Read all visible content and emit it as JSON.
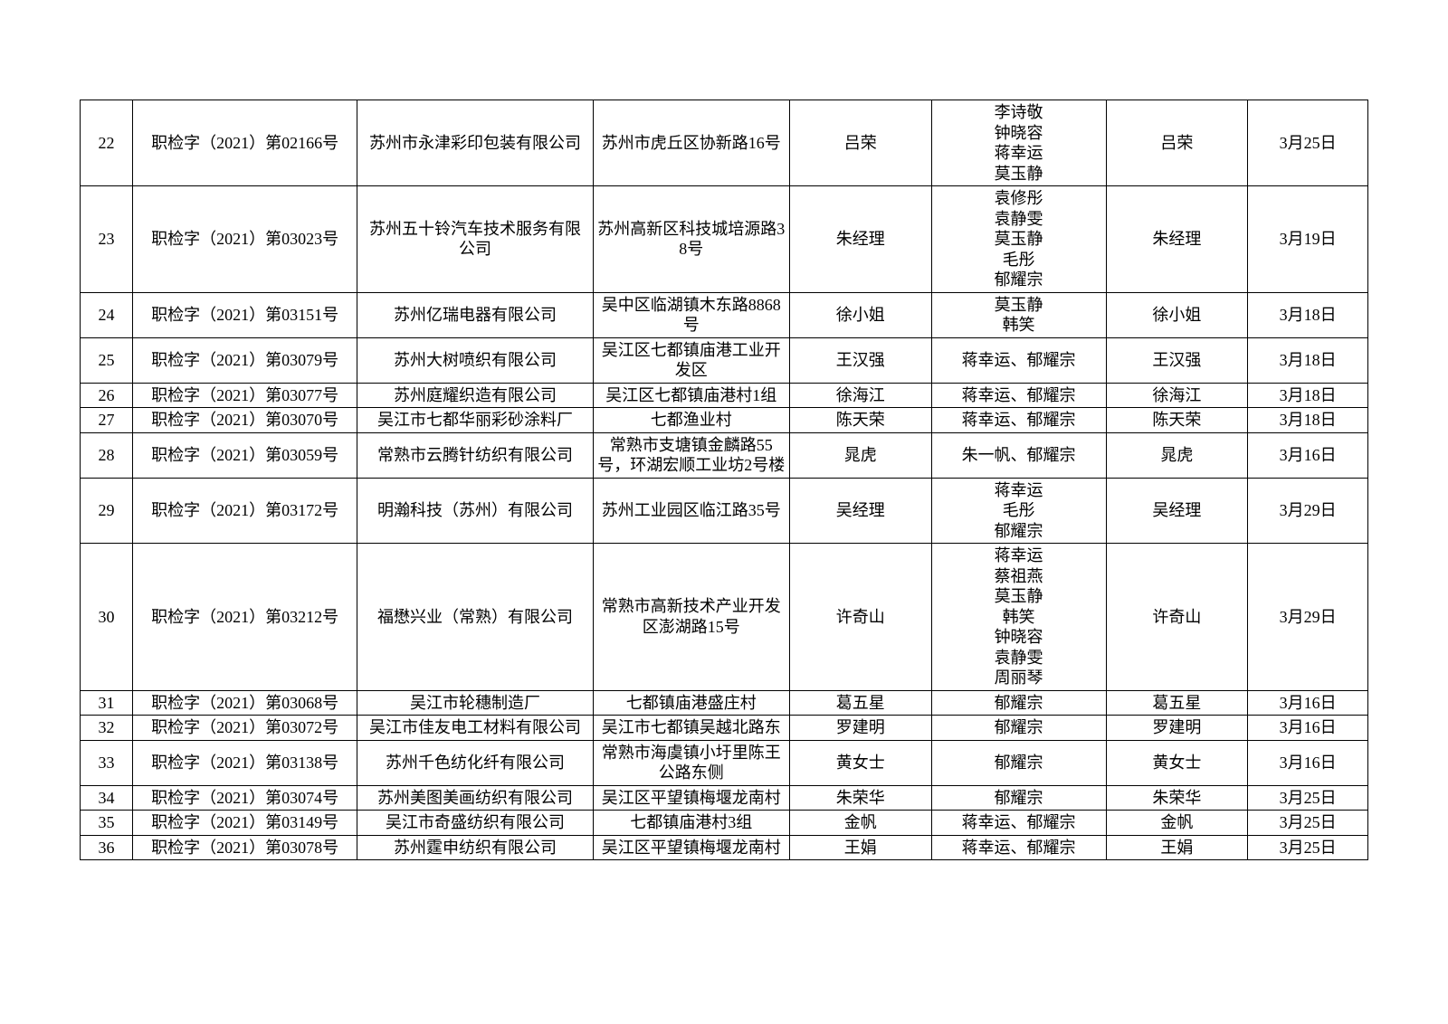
{
  "table": {
    "border_color": "#000000",
    "font_size": 18,
    "background": "#ffffff",
    "rows": [
      {
        "idx": "22",
        "code": "职检字（2021）第02166号",
        "company": "苏州市永津彩印包装有限公司",
        "address": "苏州市虎丘区协新路16号",
        "p1": "吕荣",
        "p2": "李诗敬\n钟晓容\n蒋幸运\n莫玉静",
        "p3": "吕荣",
        "date": "3月25日"
      },
      {
        "idx": "23",
        "code": "职检字（2021）第03023号",
        "company": "苏州五十铃汽车技术服务有限公司",
        "address": "苏州高新区科技城培源路38号",
        "p1": "朱经理",
        "p2": "袁修彤\n袁静雯\n莫玉静\n毛彤\n郁耀宗",
        "p3": "朱经理",
        "date": "3月19日"
      },
      {
        "idx": "24",
        "code": "职检字（2021）第03151号",
        "company": "苏州亿瑞电器有限公司",
        "address": "吴中区临湖镇木东路8868号",
        "p1": "徐小姐",
        "p2": "莫玉静\n韩笑",
        "p3": "徐小姐",
        "date": "3月18日"
      },
      {
        "idx": "25",
        "code": "职检字（2021）第03079号",
        "company": "苏州大树喷织有限公司",
        "address": "吴江区七都镇庙港工业开发区",
        "p1": "王汉强",
        "p2": "蒋幸运、郁耀宗",
        "p3": "王汉强",
        "date": "3月18日"
      },
      {
        "idx": "26",
        "code": "职检字（2021）第03077号",
        "company": "苏州庭耀织造有限公司",
        "address": "吴江区七都镇庙港村1组",
        "p1": "徐海江",
        "p2": "蒋幸运、郁耀宗",
        "p3": "徐海江",
        "date": "3月18日"
      },
      {
        "idx": "27",
        "code": "职检字（2021）第03070号",
        "company": "吴江市七都华丽彩砂涂料厂",
        "address": "七都渔业村",
        "p1": "陈天荣",
        "p2": "蒋幸运、郁耀宗",
        "p3": "陈天荣",
        "date": "3月18日"
      },
      {
        "idx": "28",
        "code": "职检字（2021）第03059号",
        "company": "常熟市云腾针纺织有限公司",
        "address": "常熟市支塘镇金麟路55号，环湖宏顺工业坊2号楼",
        "p1": "晁虎",
        "p2": "朱一帆、郁耀宗",
        "p3": "晁虎",
        "date": "3月16日"
      },
      {
        "idx": "29",
        "code": "职检字（2021）第03172号",
        "company": "明瀚科技（苏州）有限公司",
        "address": "苏州工业园区临江路35号",
        "p1": "吴经理",
        "p2": "蒋幸运\n毛彤\n郁耀宗",
        "p3": "吴经理",
        "date": "3月29日"
      },
      {
        "idx": "30",
        "code": "职检字（2021）第03212号",
        "company": "福懋兴业（常熟）有限公司",
        "address": "常熟市高新技术产业开发区澎湖路15号",
        "p1": "许奇山",
        "p2": "蒋幸运\n蔡祖燕\n莫玉静\n韩笑\n钟晓容\n袁静雯\n周丽琴",
        "p3": "许奇山",
        "date": "3月29日"
      },
      {
        "idx": "31",
        "code": "职检字（2021）第03068号",
        "company": "吴江市轮穗制造厂",
        "address": "七都镇庙港盛庄村",
        "p1": "葛五星",
        "p2": "郁耀宗",
        "p3": "葛五星",
        "date": "3月16日"
      },
      {
        "idx": "32",
        "code": "职检字（2021）第03072号",
        "company": "吴江市佳友电工材料有限公司",
        "address": "吴江市七都镇吴越北路东",
        "p1": "罗建明",
        "p2": "郁耀宗",
        "p3": "罗建明",
        "date": "3月16日"
      },
      {
        "idx": "33",
        "code": "职检字（2021）第03138号",
        "company": "苏州千色纺化纤有限公司",
        "address": "常熟市海虞镇小圩里陈王公路东侧",
        "p1": "黄女士",
        "p2": "郁耀宗",
        "p3": "黄女士",
        "date": "3月16日"
      },
      {
        "idx": "34",
        "code": "职检字（2021）第03074号",
        "company": "苏州美图美画纺织有限公司",
        "address": "吴江区平望镇梅堰龙南村",
        "p1": "朱荣华",
        "p2": "郁耀宗",
        "p3": "朱荣华",
        "date": "3月25日"
      },
      {
        "idx": "35",
        "code": "职检字（2021）第03149号",
        "company": "吴江市奇盛纺织有限公司",
        "address": "七都镇庙港村3组",
        "p1": "金帆",
        "p2": "蒋幸运、郁耀宗",
        "p3": "金帆",
        "date": "3月25日"
      },
      {
        "idx": "36",
        "code": "职检字（2021）第03078号",
        "company": "苏州霆申纺织有限公司",
        "address": "吴江区平望镇梅堰龙南村",
        "p1": "王娟",
        "p2": "蒋幸运、郁耀宗",
        "p3": "王娟",
        "date": "3月25日"
      }
    ]
  }
}
